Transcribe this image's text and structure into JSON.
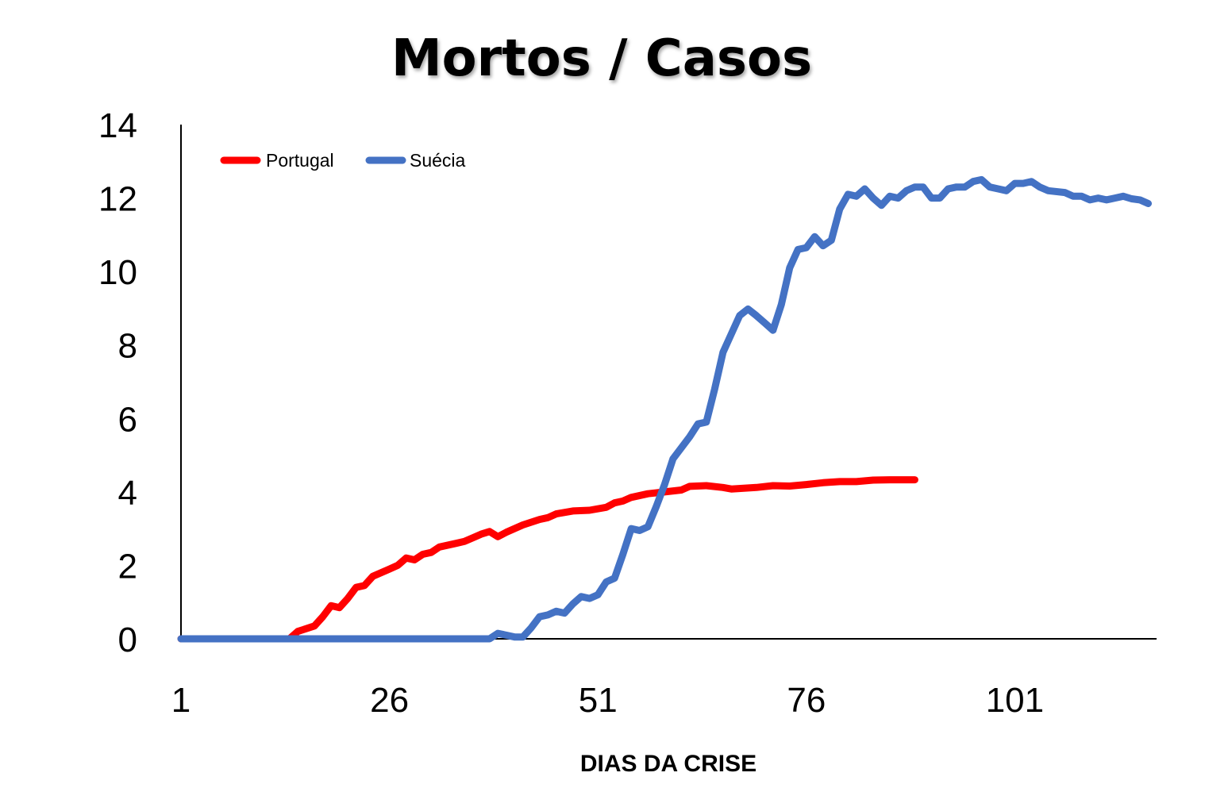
{
  "chart_data": {
    "type": "line",
    "title": "Mortos / Casos",
    "xlabel": "DIAS DA CRISE",
    "ylabel": "",
    "xlim": [
      1,
      118
    ],
    "ylim": [
      0,
      14
    ],
    "x_ticks": [
      1,
      26,
      51,
      76,
      101
    ],
    "y_ticks": [
      0,
      2,
      4,
      6,
      8,
      10,
      12,
      14
    ],
    "grid": false,
    "legend_position": "top-left",
    "series": [
      {
        "name": "Portugal",
        "color": "#ff0000",
        "points": [
          [
            1,
            0
          ],
          [
            14,
            0
          ],
          [
            15,
            0.2
          ],
          [
            17,
            0.35
          ],
          [
            18,
            0.6
          ],
          [
            19,
            0.9
          ],
          [
            20,
            0.85
          ],
          [
            21,
            1.1
          ],
          [
            22,
            1.4
          ],
          [
            23,
            1.45
          ],
          [
            24,
            1.7
          ],
          [
            26,
            1.9
          ],
          [
            27,
            2.0
          ],
          [
            28,
            2.2
          ],
          [
            29,
            2.15
          ],
          [
            30,
            2.3
          ],
          [
            31,
            2.35
          ],
          [
            32,
            2.5
          ],
          [
            34,
            2.6
          ],
          [
            35,
            2.65
          ],
          [
            36,
            2.75
          ],
          [
            37,
            2.85
          ],
          [
            38,
            2.92
          ],
          [
            39,
            2.78
          ],
          [
            40,
            2.9
          ],
          [
            42,
            3.1
          ],
          [
            44,
            3.25
          ],
          [
            45,
            3.3
          ],
          [
            46,
            3.4
          ],
          [
            48,
            3.48
          ],
          [
            50,
            3.5
          ],
          [
            52,
            3.58
          ],
          [
            53,
            3.7
          ],
          [
            54,
            3.75
          ],
          [
            55,
            3.85
          ],
          [
            57,
            3.95
          ],
          [
            59,
            4.0
          ],
          [
            61,
            4.05
          ],
          [
            62,
            4.15
          ],
          [
            64,
            4.17
          ],
          [
            66,
            4.12
          ],
          [
            67,
            4.08
          ],
          [
            70,
            4.12
          ],
          [
            72,
            4.17
          ],
          [
            74,
            4.16
          ],
          [
            76,
            4.2
          ],
          [
            78,
            4.25
          ],
          [
            80,
            4.28
          ],
          [
            82,
            4.28
          ],
          [
            84,
            4.32
          ],
          [
            86,
            4.33
          ],
          [
            89,
            4.33
          ]
        ]
      },
      {
        "name": "Suécia",
        "color": "#4472c4",
        "points": [
          [
            1,
            0
          ],
          [
            38,
            0
          ],
          [
            39,
            0.15
          ],
          [
            40,
            0.1
          ],
          [
            41,
            0.05
          ],
          [
            42,
            0.05
          ],
          [
            43,
            0.3
          ],
          [
            44,
            0.6
          ],
          [
            45,
            0.65
          ],
          [
            46,
            0.75
          ],
          [
            47,
            0.7
          ],
          [
            48,
            0.95
          ],
          [
            49,
            1.15
          ],
          [
            50,
            1.1
          ],
          [
            51,
            1.2
          ],
          [
            52,
            1.55
          ],
          [
            53,
            1.65
          ],
          [
            54,
            2.3
          ],
          [
            55,
            3.0
          ],
          [
            56,
            2.95
          ],
          [
            57,
            3.05
          ],
          [
            58,
            3.6
          ],
          [
            59,
            4.2
          ],
          [
            60,
            4.9
          ],
          [
            61,
            5.2
          ],
          [
            62,
            5.5
          ],
          [
            63,
            5.85
          ],
          [
            64,
            5.9
          ],
          [
            65,
            6.8
          ],
          [
            66,
            7.8
          ],
          [
            67,
            8.3
          ],
          [
            68,
            8.8
          ],
          [
            69,
            8.98
          ],
          [
            70,
            8.8
          ],
          [
            71,
            8.6
          ],
          [
            72,
            8.4
          ],
          [
            73,
            9.1
          ],
          [
            74,
            10.1
          ],
          [
            75,
            10.6
          ],
          [
            76,
            10.65
          ],
          [
            77,
            10.95
          ],
          [
            78,
            10.7
          ],
          [
            79,
            10.85
          ],
          [
            80,
            11.7
          ],
          [
            81,
            12.1
          ],
          [
            82,
            12.05
          ],
          [
            83,
            12.25
          ],
          [
            84,
            12.0
          ],
          [
            85,
            11.8
          ],
          [
            86,
            12.05
          ],
          [
            87,
            12.0
          ],
          [
            88,
            12.2
          ],
          [
            89,
            12.3
          ],
          [
            90,
            12.3
          ],
          [
            91,
            12.0
          ],
          [
            92,
            12.0
          ],
          [
            93,
            12.25
          ],
          [
            94,
            12.3
          ],
          [
            95,
            12.3
          ],
          [
            96,
            12.45
          ],
          [
            97,
            12.5
          ],
          [
            98,
            12.3
          ],
          [
            99,
            12.25
          ],
          [
            100,
            12.2
          ],
          [
            101,
            12.4
          ],
          [
            102,
            12.4
          ],
          [
            103,
            12.45
          ],
          [
            104,
            12.3
          ],
          [
            105,
            12.2
          ],
          [
            107,
            12.15
          ],
          [
            108,
            12.05
          ],
          [
            109,
            12.05
          ],
          [
            110,
            11.95
          ],
          [
            111,
            12.0
          ],
          [
            112,
            11.95
          ],
          [
            113,
            12.0
          ],
          [
            114,
            12.05
          ],
          [
            115,
            11.98
          ],
          [
            116,
            11.95
          ],
          [
            117,
            11.85
          ]
        ]
      }
    ]
  }
}
